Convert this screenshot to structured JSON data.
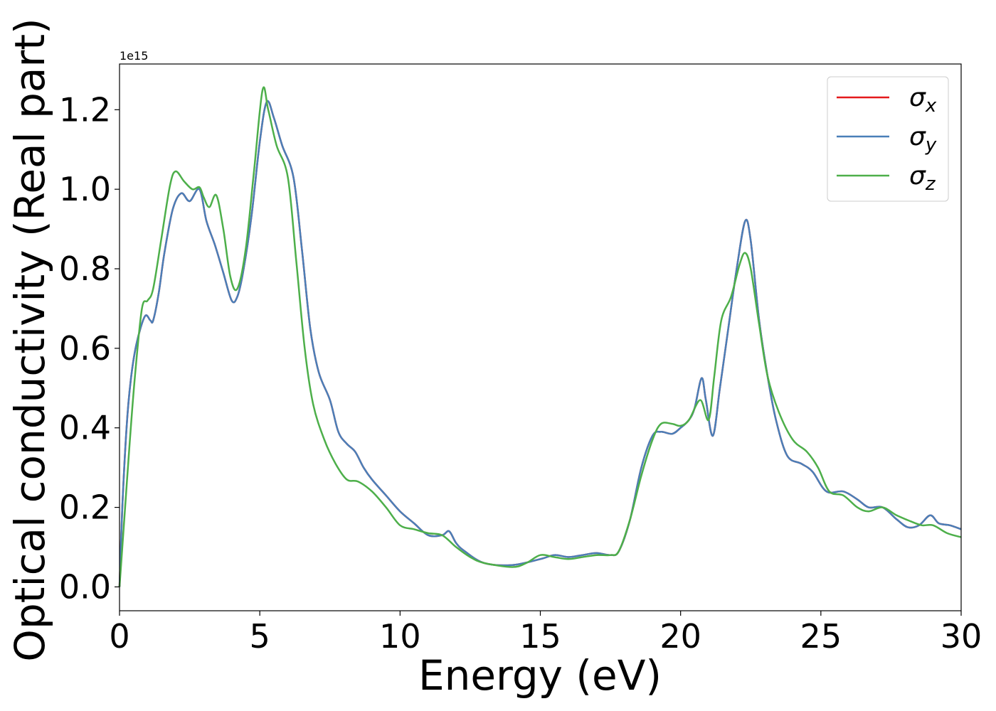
{
  "chart_data": {
    "type": "line",
    "xlabel": "Energy (eV)",
    "ylabel": "Optical conductivity (Real part)",
    "y_offset_label": "1e15",
    "xlim": [
      0,
      30
    ],
    "ylim": [
      -0.06,
      1.315
    ],
    "x_ticks": [
      0,
      5,
      10,
      15,
      20,
      25,
      30
    ],
    "x_tick_labels": [
      "0",
      "5",
      "10",
      "15",
      "20",
      "25",
      "30"
    ],
    "y_ticks": [
      0.0,
      0.2,
      0.4,
      0.6,
      0.8,
      1.0,
      1.2
    ],
    "y_tick_labels": [
      "0.0",
      "0.2",
      "0.4",
      "0.6",
      "0.8",
      "1.0",
      "1.2"
    ],
    "grid": false,
    "legend_position": "top-right",
    "series": [
      {
        "name": "σx",
        "legend_base": "σ",
        "legend_sub": "x",
        "color": "#e41a1c",
        "points": [
          [
            0,
            0.0
          ],
          [
            0.1,
            0.2
          ],
          [
            0.25,
            0.4
          ],
          [
            0.4,
            0.52
          ],
          [
            0.6,
            0.61
          ],
          [
            0.9,
            0.68
          ],
          [
            1.1,
            0.67
          ],
          [
            1.2,
            0.67
          ],
          [
            1.4,
            0.74
          ],
          [
            1.6,
            0.84
          ],
          [
            1.9,
            0.95
          ],
          [
            2.2,
            0.99
          ],
          [
            2.5,
            0.97
          ],
          [
            2.85,
            1.0
          ],
          [
            3.1,
            0.92
          ],
          [
            3.4,
            0.86
          ],
          [
            3.7,
            0.79
          ],
          [
            4.0,
            0.72
          ],
          [
            4.2,
            0.73
          ],
          [
            4.4,
            0.79
          ],
          [
            4.7,
            0.93
          ],
          [
            5.0,
            1.12
          ],
          [
            5.25,
            1.22
          ],
          [
            5.5,
            1.18
          ],
          [
            5.8,
            1.11
          ],
          [
            6.2,
            1.03
          ],
          [
            6.5,
            0.85
          ],
          [
            6.8,
            0.65
          ],
          [
            7.1,
            0.54
          ],
          [
            7.5,
            0.47
          ],
          [
            7.8,
            0.39
          ],
          [
            8.1,
            0.36
          ],
          [
            8.4,
            0.34
          ],
          [
            8.7,
            0.3
          ],
          [
            9.0,
            0.27
          ],
          [
            9.5,
            0.23
          ],
          [
            10.0,
            0.19
          ],
          [
            10.5,
            0.16
          ],
          [
            11.0,
            0.13
          ],
          [
            11.5,
            0.13
          ],
          [
            11.75,
            0.14
          ],
          [
            12.0,
            0.11
          ],
          [
            12.3,
            0.09
          ],
          [
            13.0,
            0.06
          ],
          [
            14.0,
            0.055
          ],
          [
            15.0,
            0.07
          ],
          [
            15.5,
            0.08
          ],
          [
            16.0,
            0.075
          ],
          [
            16.5,
            0.08
          ],
          [
            17.0,
            0.085
          ],
          [
            17.5,
            0.08
          ],
          [
            17.8,
            0.09
          ],
          [
            18.2,
            0.17
          ],
          [
            18.6,
            0.3
          ],
          [
            19.0,
            0.38
          ],
          [
            19.3,
            0.39
          ],
          [
            19.7,
            0.385
          ],
          [
            20.0,
            0.4
          ],
          [
            20.3,
            0.42
          ],
          [
            20.5,
            0.45
          ],
          [
            20.75,
            0.525
          ],
          [
            20.9,
            0.47
          ],
          [
            21.15,
            0.38
          ],
          [
            21.4,
            0.5
          ],
          [
            21.7,
            0.65
          ],
          [
            22.0,
            0.8
          ],
          [
            22.3,
            0.92
          ],
          [
            22.5,
            0.87
          ],
          [
            22.8,
            0.67
          ],
          [
            23.1,
            0.53
          ],
          [
            23.4,
            0.42
          ],
          [
            23.8,
            0.33
          ],
          [
            24.3,
            0.31
          ],
          [
            24.7,
            0.29
          ],
          [
            25.2,
            0.24
          ],
          [
            25.8,
            0.24
          ],
          [
            26.3,
            0.22
          ],
          [
            26.7,
            0.2
          ],
          [
            27.2,
            0.2
          ],
          [
            27.7,
            0.17
          ],
          [
            28.1,
            0.15
          ],
          [
            28.5,
            0.155
          ],
          [
            28.9,
            0.18
          ],
          [
            29.2,
            0.16
          ],
          [
            29.6,
            0.155
          ],
          [
            30.0,
            0.145
          ]
        ]
      },
      {
        "name": "σy",
        "legend_base": "σ",
        "legend_sub": "y",
        "color": "#4a7fb8",
        "points": [
          [
            0,
            0.0
          ],
          [
            0.1,
            0.2
          ],
          [
            0.25,
            0.4
          ],
          [
            0.4,
            0.52
          ],
          [
            0.6,
            0.61
          ],
          [
            0.9,
            0.68
          ],
          [
            1.1,
            0.67
          ],
          [
            1.2,
            0.67
          ],
          [
            1.4,
            0.74
          ],
          [
            1.6,
            0.84
          ],
          [
            1.9,
            0.95
          ],
          [
            2.2,
            0.99
          ],
          [
            2.5,
            0.97
          ],
          [
            2.85,
            1.0
          ],
          [
            3.1,
            0.92
          ],
          [
            3.4,
            0.86
          ],
          [
            3.7,
            0.79
          ],
          [
            4.0,
            0.72
          ],
          [
            4.2,
            0.73
          ],
          [
            4.4,
            0.79
          ],
          [
            4.7,
            0.93
          ],
          [
            5.0,
            1.12
          ],
          [
            5.25,
            1.22
          ],
          [
            5.5,
            1.18
          ],
          [
            5.8,
            1.11
          ],
          [
            6.2,
            1.03
          ],
          [
            6.5,
            0.85
          ],
          [
            6.8,
            0.65
          ],
          [
            7.1,
            0.54
          ],
          [
            7.5,
            0.47
          ],
          [
            7.8,
            0.39
          ],
          [
            8.1,
            0.36
          ],
          [
            8.4,
            0.34
          ],
          [
            8.7,
            0.3
          ],
          [
            9.0,
            0.27
          ],
          [
            9.5,
            0.23
          ],
          [
            10.0,
            0.19
          ],
          [
            10.5,
            0.16
          ],
          [
            11.0,
            0.13
          ],
          [
            11.5,
            0.13
          ],
          [
            11.75,
            0.14
          ],
          [
            12.0,
            0.11
          ],
          [
            12.3,
            0.09
          ],
          [
            13.0,
            0.06
          ],
          [
            14.0,
            0.055
          ],
          [
            15.0,
            0.07
          ],
          [
            15.5,
            0.08
          ],
          [
            16.0,
            0.075
          ],
          [
            16.5,
            0.08
          ],
          [
            17.0,
            0.085
          ],
          [
            17.5,
            0.08
          ],
          [
            17.8,
            0.09
          ],
          [
            18.2,
            0.17
          ],
          [
            18.6,
            0.3
          ],
          [
            19.0,
            0.38
          ],
          [
            19.3,
            0.39
          ],
          [
            19.7,
            0.385
          ],
          [
            20.0,
            0.4
          ],
          [
            20.3,
            0.42
          ],
          [
            20.5,
            0.45
          ],
          [
            20.75,
            0.525
          ],
          [
            20.9,
            0.47
          ],
          [
            21.15,
            0.38
          ],
          [
            21.4,
            0.5
          ],
          [
            21.7,
            0.65
          ],
          [
            22.0,
            0.8
          ],
          [
            22.3,
            0.92
          ],
          [
            22.5,
            0.87
          ],
          [
            22.8,
            0.67
          ],
          [
            23.1,
            0.53
          ],
          [
            23.4,
            0.42
          ],
          [
            23.8,
            0.33
          ],
          [
            24.3,
            0.31
          ],
          [
            24.7,
            0.29
          ],
          [
            25.2,
            0.24
          ],
          [
            25.8,
            0.24
          ],
          [
            26.3,
            0.22
          ],
          [
            26.7,
            0.2
          ],
          [
            27.2,
            0.2
          ],
          [
            27.7,
            0.17
          ],
          [
            28.1,
            0.15
          ],
          [
            28.5,
            0.155
          ],
          [
            28.9,
            0.18
          ],
          [
            29.2,
            0.16
          ],
          [
            29.6,
            0.155
          ],
          [
            30.0,
            0.145
          ]
        ]
      },
      {
        "name": "σz",
        "legend_base": "σ",
        "legend_sub": "z",
        "color": "#4daf4a",
        "points": [
          [
            0,
            0.0
          ],
          [
            0.15,
            0.15
          ],
          [
            0.35,
            0.35
          ],
          [
            0.55,
            0.53
          ],
          [
            0.8,
            0.7
          ],
          [
            1.0,
            0.72
          ],
          [
            1.2,
            0.75
          ],
          [
            1.5,
            0.88
          ],
          [
            1.8,
            1.01
          ],
          [
            2.0,
            1.045
          ],
          [
            2.3,
            1.02
          ],
          [
            2.6,
            1.0
          ],
          [
            2.85,
            1.005
          ],
          [
            3.0,
            0.98
          ],
          [
            3.2,
            0.955
          ],
          [
            3.45,
            0.985
          ],
          [
            3.7,
            0.9
          ],
          [
            3.95,
            0.78
          ],
          [
            4.2,
            0.75
          ],
          [
            4.5,
            0.85
          ],
          [
            4.8,
            1.05
          ],
          [
            5.1,
            1.25
          ],
          [
            5.3,
            1.2
          ],
          [
            5.6,
            1.11
          ],
          [
            6.0,
            1.03
          ],
          [
            6.3,
            0.82
          ],
          [
            6.6,
            0.6
          ],
          [
            6.9,
            0.46
          ],
          [
            7.3,
            0.37
          ],
          [
            7.7,
            0.31
          ],
          [
            8.1,
            0.27
          ],
          [
            8.5,
            0.265
          ],
          [
            9.0,
            0.24
          ],
          [
            9.5,
            0.2
          ],
          [
            10.0,
            0.155
          ],
          [
            10.5,
            0.145
          ],
          [
            11.0,
            0.135
          ],
          [
            11.5,
            0.13
          ],
          [
            12.0,
            0.1
          ],
          [
            12.5,
            0.075
          ],
          [
            13.0,
            0.06
          ],
          [
            14.0,
            0.05
          ],
          [
            14.5,
            0.06
          ],
          [
            15.0,
            0.08
          ],
          [
            15.5,
            0.075
          ],
          [
            16.0,
            0.07
          ],
          [
            16.5,
            0.075
          ],
          [
            17.0,
            0.08
          ],
          [
            17.5,
            0.08
          ],
          [
            17.8,
            0.09
          ],
          [
            18.2,
            0.17
          ],
          [
            18.6,
            0.28
          ],
          [
            19.0,
            0.37
          ],
          [
            19.3,
            0.41
          ],
          [
            19.7,
            0.41
          ],
          [
            20.0,
            0.405
          ],
          [
            20.3,
            0.42
          ],
          [
            20.7,
            0.47
          ],
          [
            21.0,
            0.42
          ],
          [
            21.2,
            0.53
          ],
          [
            21.45,
            0.67
          ],
          [
            21.8,
            0.73
          ],
          [
            22.1,
            0.81
          ],
          [
            22.3,
            0.84
          ],
          [
            22.5,
            0.8
          ],
          [
            22.8,
            0.66
          ],
          [
            23.1,
            0.53
          ],
          [
            23.5,
            0.44
          ],
          [
            24.0,
            0.37
          ],
          [
            24.5,
            0.34
          ],
          [
            24.9,
            0.3
          ],
          [
            25.3,
            0.24
          ],
          [
            25.8,
            0.23
          ],
          [
            26.3,
            0.2
          ],
          [
            26.7,
            0.19
          ],
          [
            27.2,
            0.2
          ],
          [
            27.7,
            0.18
          ],
          [
            28.2,
            0.165
          ],
          [
            28.6,
            0.155
          ],
          [
            29.0,
            0.155
          ],
          [
            29.5,
            0.135
          ],
          [
            30.0,
            0.125
          ]
        ]
      }
    ]
  }
}
